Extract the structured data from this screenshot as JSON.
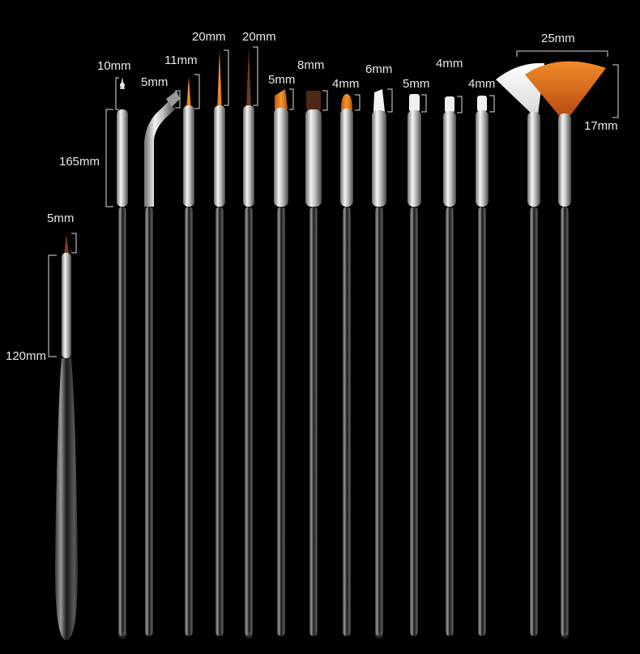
{
  "labels": {
    "l0": "10mm",
    "l1": "5mm",
    "l2": "11mm",
    "l3": "20mm",
    "l4": "20mm",
    "l5": "5mm",
    "l6": "8mm",
    "l7": "4mm",
    "l8": "6mm",
    "l9": "5mm",
    "l10": "4mm",
    "l11": "4mm",
    "l12": "25mm",
    "l13": "17mm",
    "l14": "165mm",
    "l15": "5mm",
    "l16": "120mm"
  },
  "colors": {
    "background": "#000000",
    "nylon_orange": "#e07a1c",
    "dark_bristle": "#5a2d16",
    "white_bristle": "#f2f2f2",
    "ferrule_silver": "#d9d9d9",
    "handle_clear": "#1c1c1c"
  }
}
